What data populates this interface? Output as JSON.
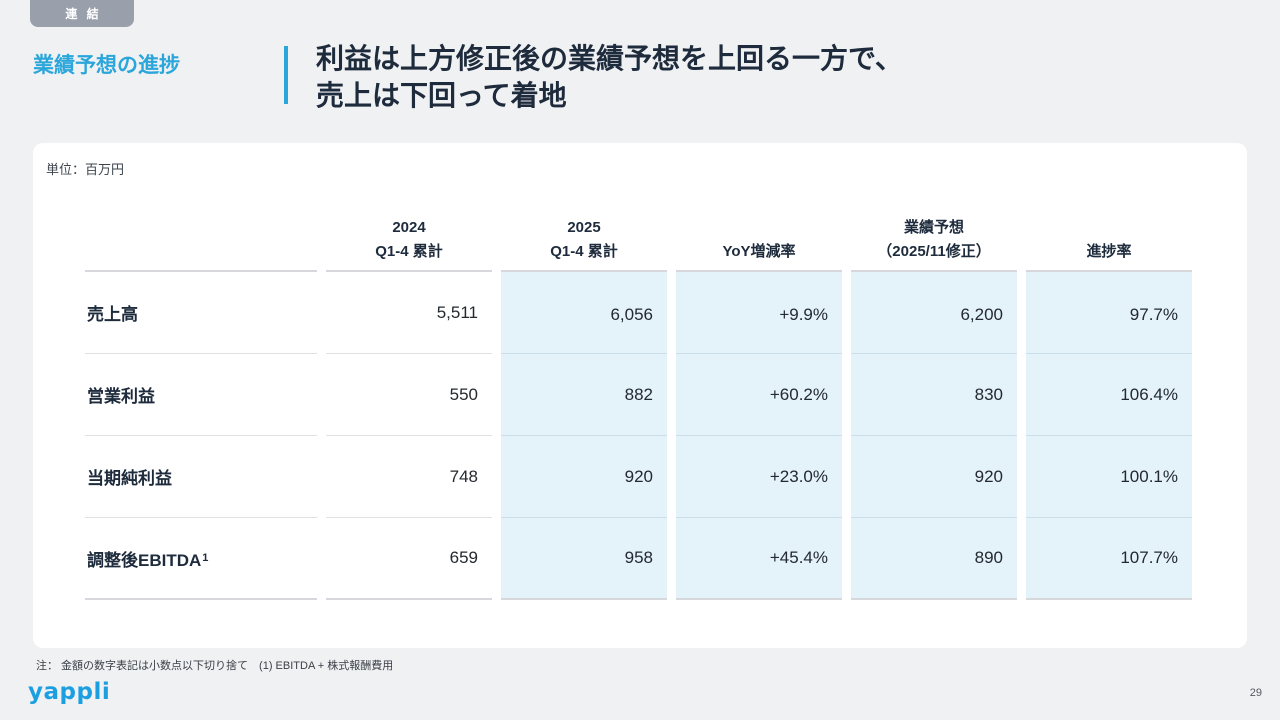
{
  "badge": {
    "label": "連 結"
  },
  "header": {
    "section_title": "業績予想の進捗",
    "title_line1": "利益は上方修正後の業績予想を上回る一方で、",
    "title_line2": "売上は下回って着地"
  },
  "card": {
    "unit_label": "単位：百万円"
  },
  "table": {
    "headers": [
      {
        "l1": "",
        "l2": ""
      },
      {
        "l1": "2024",
        "l2": "Q1-4 累計"
      },
      {
        "l1": "2025",
        "l2": "Q1-4 累計"
      },
      {
        "l1": "",
        "l2": "YoY増減率"
      },
      {
        "l1": "業績予想",
        "l2": "（2025/11修正）"
      },
      {
        "l1": "",
        "l2": "進捗率"
      }
    ],
    "rows": [
      {
        "label": "売上高",
        "sup": "",
        "v": [
          "5,511",
          "6,056",
          "+9.9%",
          "6,200",
          "97.7%"
        ]
      },
      {
        "label": "営業利益",
        "sup": "",
        "v": [
          "550",
          "882",
          "+60.2%",
          "830",
          "106.4%"
        ]
      },
      {
        "label": "当期純利益",
        "sup": "",
        "v": [
          "748",
          "920",
          "+23.0%",
          "920",
          "100.1%"
        ]
      },
      {
        "label": "調整後EBITDA",
        "sup": "1",
        "v": [
          "659",
          "958",
          "+45.4%",
          "890",
          "107.7%"
        ]
      }
    ]
  },
  "footnote": "注： 金額の数字表記は小数点以下切り捨て　(1) EBITDA + 株式報酬費用",
  "footer": {
    "logo": "yappli",
    "page_number": "29"
  },
  "colors": {
    "accent_blue": "#2BA6DB",
    "logo_blue": "#1C9FE0",
    "title_navy": "#1E2B3C",
    "badge_gray": "#99A0AB",
    "highlight_cell_bg": "#E4F2FA",
    "page_bg": "#F0F1F3",
    "card_bg": "#FFFFFF"
  }
}
